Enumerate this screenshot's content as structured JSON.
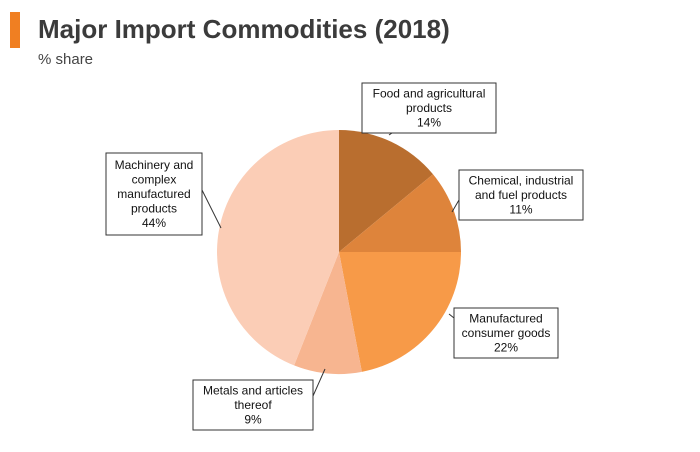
{
  "header": {
    "title": "Major Import Commodities (2018)",
    "subtitle": "% share",
    "accent_color": "#f07f22"
  },
  "chart_data": {
    "type": "pie",
    "title": "Major Import Commodities (2018)",
    "subtitle": "% share",
    "start_angle_deg": 0,
    "direction": "clockwise",
    "slices": [
      {
        "label_lines": [
          "Food and agricultural",
          "products"
        ],
        "value": 14,
        "value_label": "14%",
        "color": "#b96e2f"
      },
      {
        "label_lines": [
          "Chemical, industrial",
          "and fuel products"
        ],
        "value": 11,
        "value_label": "11%",
        "color": "#de843b"
      },
      {
        "label_lines": [
          "Manufactured",
          "consumer goods"
        ],
        "value": 22,
        "value_label": "22%",
        "color": "#f79a48"
      },
      {
        "label_lines": [
          "Metals and articles",
          "thereof"
        ],
        "value": 9,
        "value_label": "9%",
        "color": "#f7b590"
      },
      {
        "label_lines": [
          "Machinery and",
          "complex",
          "manufactured",
          "products"
        ],
        "value": 44,
        "value_label": "44%",
        "color": "#fbcdb6"
      }
    ]
  }
}
